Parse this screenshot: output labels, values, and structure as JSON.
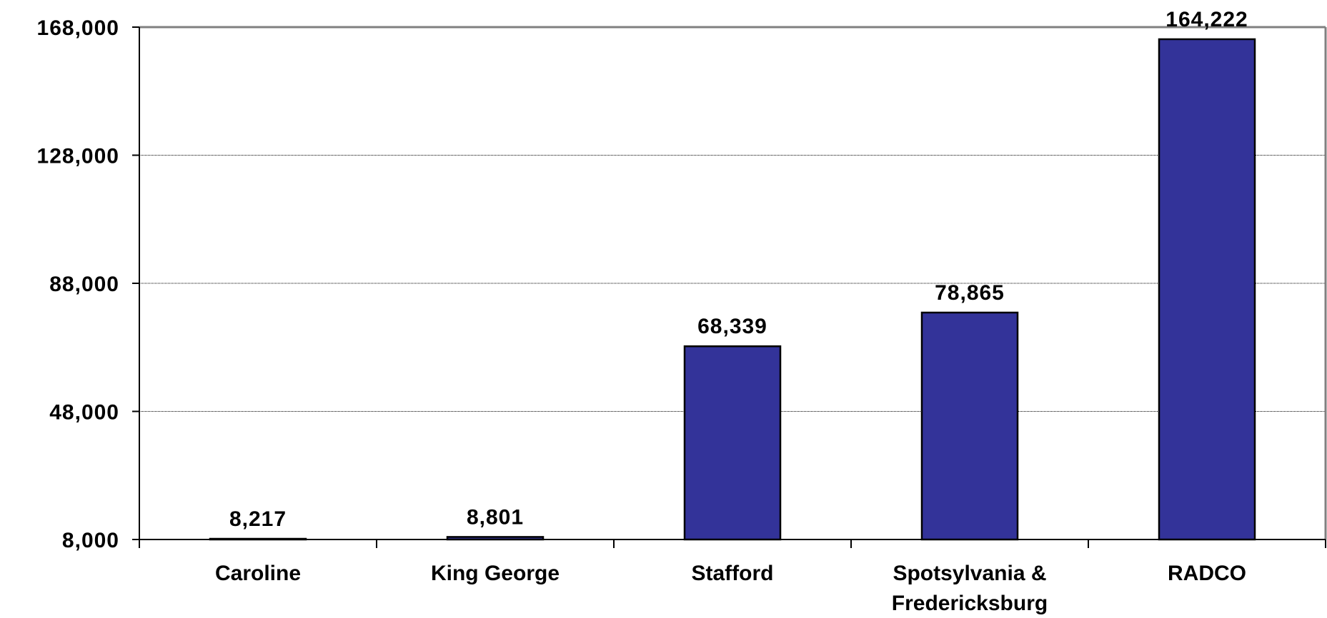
{
  "chart_data": {
    "type": "bar",
    "categories": [
      "Caroline",
      "King George",
      "Stafford",
      "Spotsylvania & Fredericksburg",
      "RADCO"
    ],
    "category_lines": [
      [
        "Caroline"
      ],
      [
        "King George"
      ],
      [
        "Stafford"
      ],
      [
        "Spotsylvania &",
        "Fredericksburg"
      ],
      [
        "RADCO"
      ]
    ],
    "values": [
      8217,
      8801,
      68339,
      78865,
      164222
    ],
    "data_labels": [
      "8,217",
      "8,801",
      "68,339",
      "78,865",
      "164,222"
    ],
    "ylim": [
      8000,
      168000
    ],
    "yticks": [
      8000,
      48000,
      88000,
      128000,
      168000
    ],
    "ytick_labels": [
      "8,000",
      "48,000",
      "88,000",
      "128,000",
      "168,000"
    ],
    "grid": true,
    "bar_color": "#333399"
  }
}
